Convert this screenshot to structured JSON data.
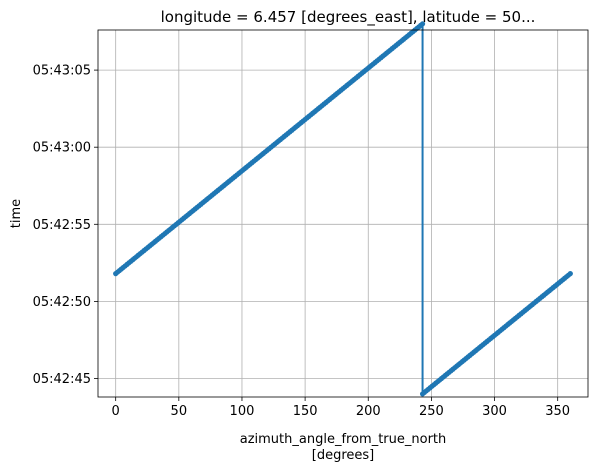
{
  "chart_data": {
    "type": "line",
    "title": "longitude = 6.457 [degrees_east], latitude = 50...",
    "xlabel_line1": "azimuth_angle_from_true_north",
    "xlabel_line2": "[degrees]",
    "ylabel": "time",
    "xlim": [
      -14,
      374
    ],
    "ylim_seconds": [
      43.8,
      67.6
    ],
    "grid": true,
    "color": "#1f77b4",
    "x_ticks": [
      {
        "value": 0,
        "label": "0"
      },
      {
        "value": 50,
        "label": "50"
      },
      {
        "value": 100,
        "label": "100"
      },
      {
        "value": 150,
        "label": "150"
      },
      {
        "value": 200,
        "label": "200"
      },
      {
        "value": 250,
        "label": "250"
      },
      {
        "value": 300,
        "label": "300"
      },
      {
        "value": 350,
        "label": "350"
      }
    ],
    "y_ticks": [
      {
        "value": 45,
        "label": "05:42:45"
      },
      {
        "value": 50,
        "label": "05:42:50"
      },
      {
        "value": 55,
        "label": "05:42:55"
      },
      {
        "value": 60,
        "label": "05:43:00"
      },
      {
        "value": 65,
        "label": "05:43:05"
      }
    ],
    "series": [
      {
        "points": [
          {
            "x": 0,
            "t": "05:42:51.8"
          },
          {
            "x": 243,
            "t": "05:43:08.0"
          },
          {
            "x": 243,
            "t": "05:42:44.0"
          },
          {
            "x": 360,
            "t": "05:42:51.8"
          }
        ]
      }
    ]
  }
}
